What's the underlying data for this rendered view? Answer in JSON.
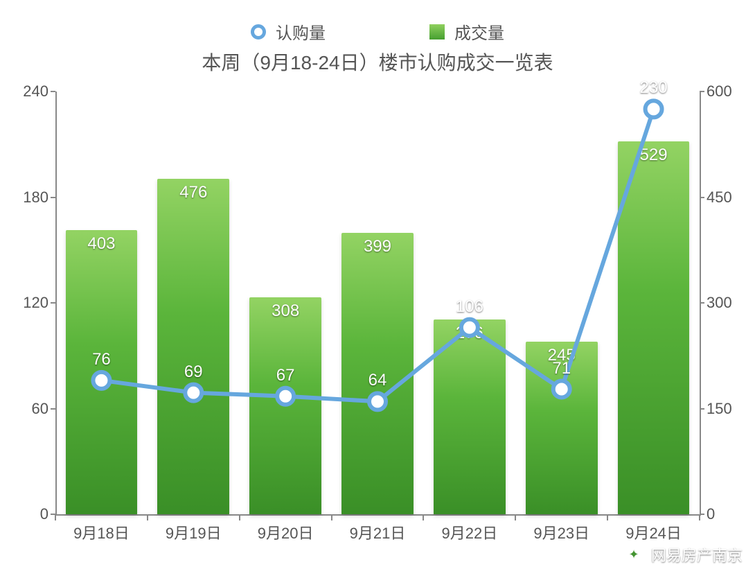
{
  "legend": {
    "line_label": "认购量",
    "bar_label": "成交量"
  },
  "title": "本周（9月18-24日）楼市认购成交一览表",
  "chart": {
    "type": "combo-bar-line",
    "categories": [
      "9月18日",
      "9月19日",
      "9月20日",
      "9月21日",
      "9月22日",
      "9月23日",
      "9月24日"
    ],
    "bars": {
      "values": [
        403,
        476,
        308,
        399,
        276,
        245,
        529
      ],
      "labels": [
        "403",
        "476",
        "308",
        "399",
        "276",
        "245",
        "529"
      ],
      "axis": "right",
      "color_top": "#93d363",
      "color_bottom": "#3a8f27",
      "label_color": "#ffffff",
      "bar_width_ratio": 0.78
    },
    "line": {
      "values": [
        76,
        69,
        67,
        64,
        106,
        71,
        230
      ],
      "labels": [
        "76",
        "69",
        "67",
        "64",
        "106",
        "71",
        "230"
      ],
      "axis": "left",
      "stroke_color": "#66a7de",
      "stroke_width": 6,
      "marker_fill": "#ffffff",
      "marker_stroke": "#66a7de",
      "marker_radius": 12,
      "marker_stroke_width": 6,
      "label_color": "#ffffff"
    },
    "left_axis": {
      "min": 0,
      "max": 240,
      "ticks": [
        0,
        60,
        120,
        180,
        240
      ],
      "label_fontsize": 22,
      "color": "#555555"
    },
    "right_axis": {
      "min": 0,
      "max": 600,
      "ticks": [
        0,
        150,
        300,
        450,
        600
      ],
      "label_fontsize": 22,
      "color": "#555555"
    },
    "background_color": "#ffffff",
    "axis_line_color": "#888888",
    "title_fontsize": 28,
    "legend_fontsize": 24,
    "overlap_label_23": "271"
  },
  "watermark": {
    "text": "网易房产南京",
    "logo_glyph": "✦"
  }
}
